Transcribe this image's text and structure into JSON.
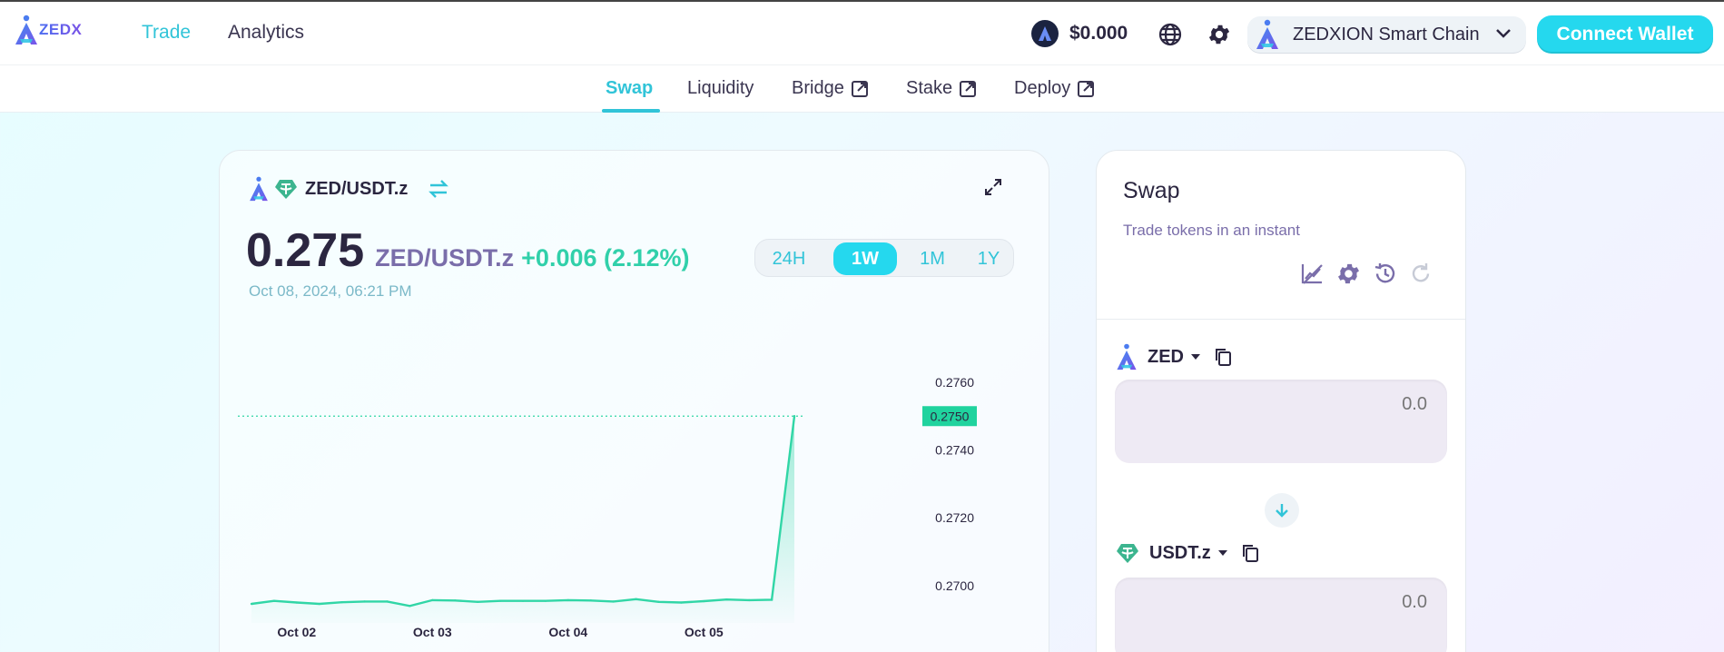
{
  "header": {
    "logo_text": "ZEDX",
    "nav": [
      {
        "label": "Trade",
        "active": true
      },
      {
        "label": "Analytics",
        "active": false
      }
    ],
    "zed_price": "$0.000",
    "chain_name": "ZEDXION Smart Chain",
    "connect_label": "Connect Wallet",
    "icons": [
      "globe-icon",
      "gear-icon",
      "chevron-down-icon"
    ]
  },
  "subnav": {
    "items": [
      {
        "label": "Swap",
        "active": true,
        "external": false
      },
      {
        "label": "Liquidity",
        "active": false,
        "external": false
      },
      {
        "label": "Bridge",
        "active": false,
        "external": true
      },
      {
        "label": "Stake",
        "active": false,
        "external": true
      },
      {
        "label": "Deploy",
        "active": false,
        "external": true
      }
    ]
  },
  "chart_panel": {
    "pair_name": "ZED/USDT.z",
    "price": "0.275",
    "pair_label": "ZED/USDT.z",
    "change": "+0.006 (2.12%)",
    "datetime": "Oct 08, 2024, 06:21 PM",
    "timeframes": [
      "24H",
      "1W",
      "1M",
      "1Y"
    ],
    "active_timeframe": "1W",
    "current_price_tag": "0.2750"
  },
  "chart_data": {
    "type": "area",
    "title": "",
    "xlabel": "",
    "ylabel": "",
    "x_ticks": [
      "Oct 02",
      "Oct 03",
      "Oct 04",
      "Oct 05"
    ],
    "x_tick_positions": [
      1,
      4,
      7,
      10
    ],
    "y_ticks": [
      "0.2760",
      "0.2740",
      "0.2720",
      "0.2700"
    ],
    "y_tick_values": [
      0.276,
      0.274,
      0.272,
      0.27
    ],
    "ylim": [
      0.2693,
      0.2764
    ],
    "current_value": 0.275,
    "series": [
      {
        "values": [
          0.26946,
          0.26955,
          0.2695,
          0.26946,
          0.26951,
          0.26953,
          0.26953,
          0.2694,
          0.26957,
          0.26956,
          0.26952,
          0.26955,
          0.26955,
          0.26955,
          0.26957,
          0.26956,
          0.26953,
          0.2696,
          0.26952,
          0.2695,
          0.26954,
          0.26959,
          0.26957,
          0.26958,
          0.275
        ]
      }
    ],
    "line_color": "#31d6a6",
    "grid": false
  },
  "swap_panel": {
    "title": "Swap",
    "subtitle": "Trade tokens in an instant",
    "tool_icons": [
      "chart-off-icon",
      "settings-icon",
      "history-icon",
      "refresh-icon"
    ],
    "from_token": {
      "symbol": "ZED",
      "amount_placeholder": "0.0"
    },
    "to_token": {
      "symbol": "USDT.z",
      "amount_placeholder": "0.0"
    }
  }
}
